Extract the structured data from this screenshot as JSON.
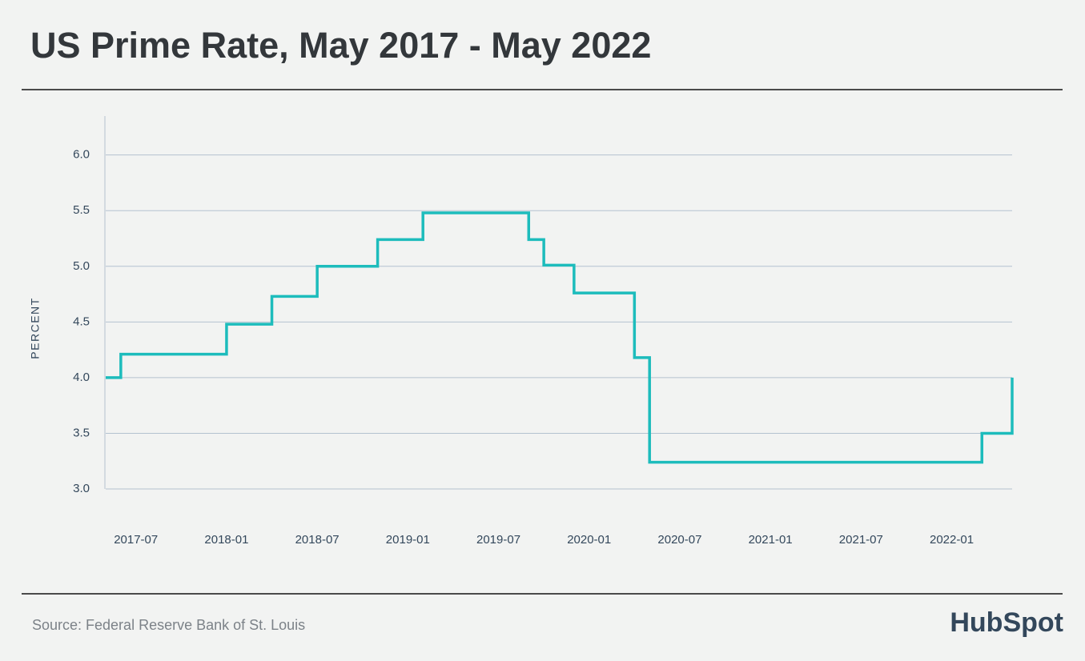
{
  "chart_data": {
    "type": "line",
    "title": "US Prime Rate, May 2017 - May 2022",
    "y_label": "PERCENT",
    "source": "Source: Federal Reserve Bank of St. Louis",
    "brand": "HubSpot",
    "step": "post",
    "color": "#1dbcbc",
    "grid": true,
    "x": [
      "2017-05",
      "2017-06",
      "2018-01",
      "2018-04",
      "2018-07",
      "2018-11",
      "2019-02",
      "2019-09",
      "2019-10",
      "2019-12",
      "2020-04",
      "2020-05",
      "2022-03",
      "2022-05"
    ],
    "values": [
      4.0,
      4.21,
      4.48,
      4.73,
      5.0,
      5.24,
      5.48,
      5.24,
      5.01,
      4.76,
      4.18,
      3.24,
      3.5,
      4.0
    ],
    "xlim": [
      "2017-05",
      "2022-05"
    ],
    "xticks": [
      "2017-07",
      "2018-01",
      "2018-07",
      "2019-01",
      "2019-07",
      "2020-01",
      "2020-07",
      "2021-01",
      "2021-07",
      "2022-01"
    ],
    "ylim": [
      3.0,
      6.35
    ],
    "yticks": [
      {
        "value": 3.0,
        "label": "3.0"
      },
      {
        "value": 3.5,
        "label": "3.5"
      },
      {
        "value": 4.0,
        "label": "4.0"
      },
      {
        "value": 4.5,
        "label": "4.5"
      },
      {
        "value": 5.0,
        "label": "5.0"
      },
      {
        "value": 5.5,
        "label": "5.5"
      },
      {
        "value": 6.0,
        "label": "6.0"
      }
    ]
  }
}
